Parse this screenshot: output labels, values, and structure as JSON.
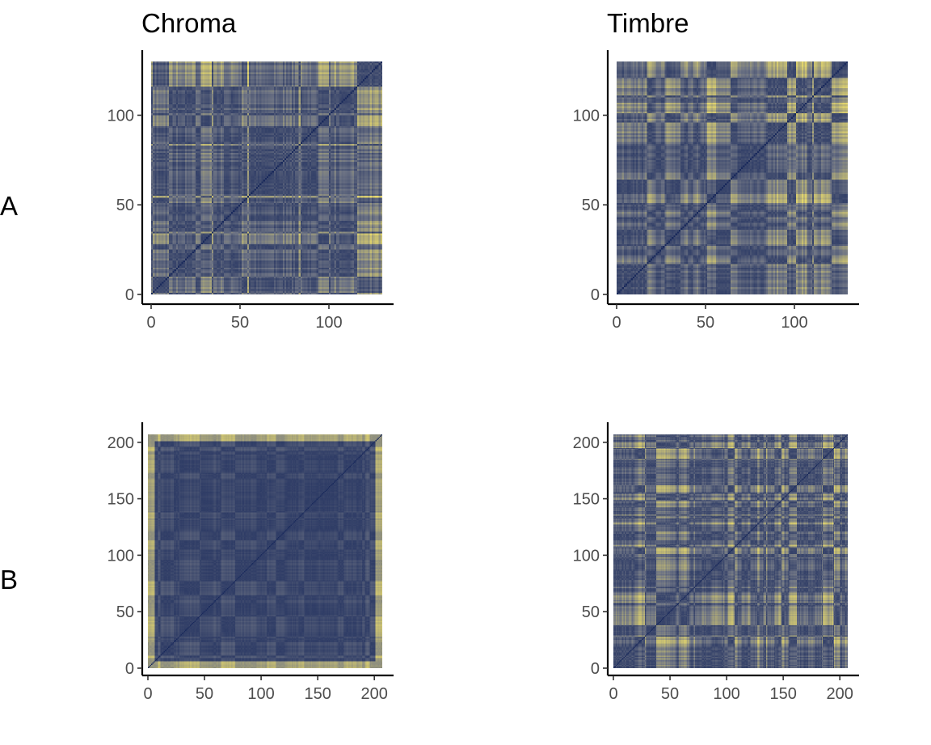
{
  "column_titles": [
    "Chroma",
    "Timbre"
  ],
  "row_labels": [
    "A",
    "B"
  ],
  "colors": {
    "low": "#1a2a5c",
    "mid": "#6f7585",
    "high": "#e7d96c"
  },
  "chart_data": [
    {
      "type": "heatmap",
      "panel": "A-Chroma",
      "row": "A",
      "column": "Chroma",
      "n": 130,
      "xlim": [
        0,
        130
      ],
      "ylim": [
        0,
        130
      ],
      "xticks": [
        0,
        50,
        100
      ],
      "yticks": [
        0,
        50,
        100
      ],
      "diagonal": "minimum",
      "grid": false
    },
    {
      "type": "heatmap",
      "panel": "A-Timbre",
      "row": "A",
      "column": "Timbre",
      "n": 130,
      "xlim": [
        0,
        130
      ],
      "ylim": [
        0,
        130
      ],
      "xticks": [
        0,
        50,
        100
      ],
      "yticks": [
        0,
        50,
        100
      ],
      "diagonal": "minimum",
      "grid": false
    },
    {
      "type": "heatmap",
      "panel": "B-Chroma",
      "row": "B",
      "column": "Chroma",
      "n": 207,
      "xlim": [
        0,
        207
      ],
      "ylim": [
        0,
        207
      ],
      "xticks": [
        0,
        50,
        100,
        150,
        200
      ],
      "yticks": [
        0,
        50,
        100,
        150,
        200
      ],
      "diagonal": "minimum",
      "grid": false
    },
    {
      "type": "heatmap",
      "panel": "B-Timbre",
      "row": "B",
      "column": "Timbre",
      "n": 207,
      "xlim": [
        0,
        207
      ],
      "ylim": [
        0,
        207
      ],
      "xticks": [
        0,
        50,
        100,
        150,
        200
      ],
      "yticks": [
        0,
        50,
        100,
        150,
        200
      ],
      "diagonal": "minimum",
      "grid": false
    }
  ]
}
